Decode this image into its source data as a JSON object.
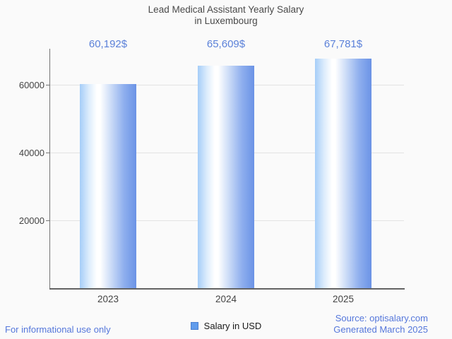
{
  "title": {
    "line1": "Lead Medical Assistant Yearly Salary",
    "line2": "in Luxembourg"
  },
  "chart_data": {
    "type": "bar",
    "title": "Lead Medical Assistant Yearly Salary in Luxembourg",
    "categories": [
      "2023",
      "2024",
      "2025"
    ],
    "series": [
      {
        "name": "Salary in USD",
        "values": [
          60192,
          65609,
          67781
        ],
        "value_labels": [
          "60,192$",
          "65,609$",
          "67,781$"
        ]
      }
    ],
    "xlabel": "",
    "ylabel": "",
    "ylim": [
      0,
      70000
    ],
    "yticks": [
      20000,
      40000,
      60000
    ],
    "grid": true,
    "legend_position": "bottom"
  },
  "legend": {
    "label": "Salary in USD"
  },
  "footer": {
    "disclaimer": "For informational use only",
    "source_line1": "Source: optisalary.com",
    "source_line2": "Generated March 2025"
  },
  "colors": {
    "accent_blue": "#5b81d9",
    "footer_blue": "#5577db",
    "bar_left": "#a5cdf8",
    "bar_highlight": "#ffffff",
    "bar_right": "#6b93e6",
    "legend_swatch": "#619cec",
    "legend_swatch_border": "#4a7fd1",
    "gridline": "#e3e3e3",
    "axis": "#757575",
    "text_dark": "#444444",
    "background": "#fafafa"
  }
}
